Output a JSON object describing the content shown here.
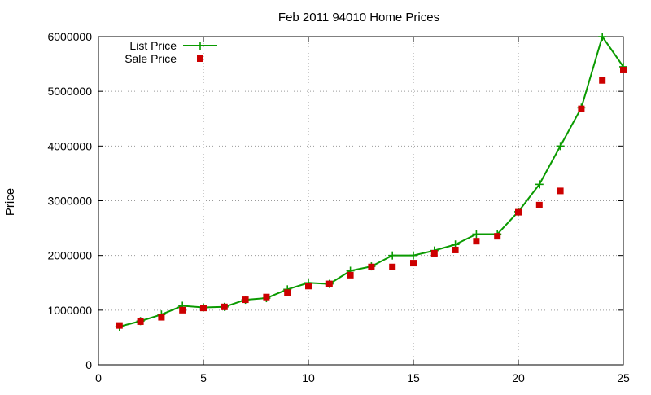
{
  "chart_data": {
    "type": "line",
    "title": "Feb 2011 94010 Home Prices",
    "xlabel": "",
    "ylabel": "Price",
    "xlim": [
      0,
      25
    ],
    "ylim": [
      0,
      6000000
    ],
    "xticks": [
      0,
      5,
      10,
      15,
      20,
      25
    ],
    "yticks": [
      0,
      1000000,
      2000000,
      3000000,
      4000000,
      5000000,
      6000000
    ],
    "grid": true,
    "legend_position": "top-left",
    "series": [
      {
        "name": "List Price",
        "style": "line-plus",
        "color": "#0a9a00",
        "x": [
          1,
          2,
          3,
          4,
          5,
          6,
          7,
          8,
          9,
          10,
          11,
          12,
          13,
          14,
          15,
          16,
          17,
          18,
          19,
          20,
          21,
          22,
          23,
          24,
          25
        ],
        "y": [
          700000,
          800000,
          920000,
          1080000,
          1050000,
          1060000,
          1190000,
          1220000,
          1380000,
          1500000,
          1480000,
          1720000,
          1800000,
          2000000,
          2000000,
          2090000,
          2200000,
          2390000,
          2390000,
          2800000,
          3300000,
          4000000,
          4700000,
          6000000,
          5450000
        ]
      },
      {
        "name": "Sale Price",
        "style": "square",
        "color": "#cc0000",
        "x": [
          1,
          2,
          3,
          4,
          5,
          6,
          7,
          8,
          9,
          10,
          11,
          12,
          13,
          14,
          15,
          16,
          17,
          18,
          19,
          20,
          21,
          22,
          23,
          24,
          25
        ],
        "y": [
          720000,
          790000,
          870000,
          1000000,
          1040000,
          1060000,
          1190000,
          1240000,
          1320000,
          1440000,
          1480000,
          1640000,
          1790000,
          1790000,
          1860000,
          2040000,
          2100000,
          2260000,
          2350000,
          2790000,
          2920000,
          3180000,
          4680000,
          5200000,
          5390000
        ]
      }
    ]
  }
}
